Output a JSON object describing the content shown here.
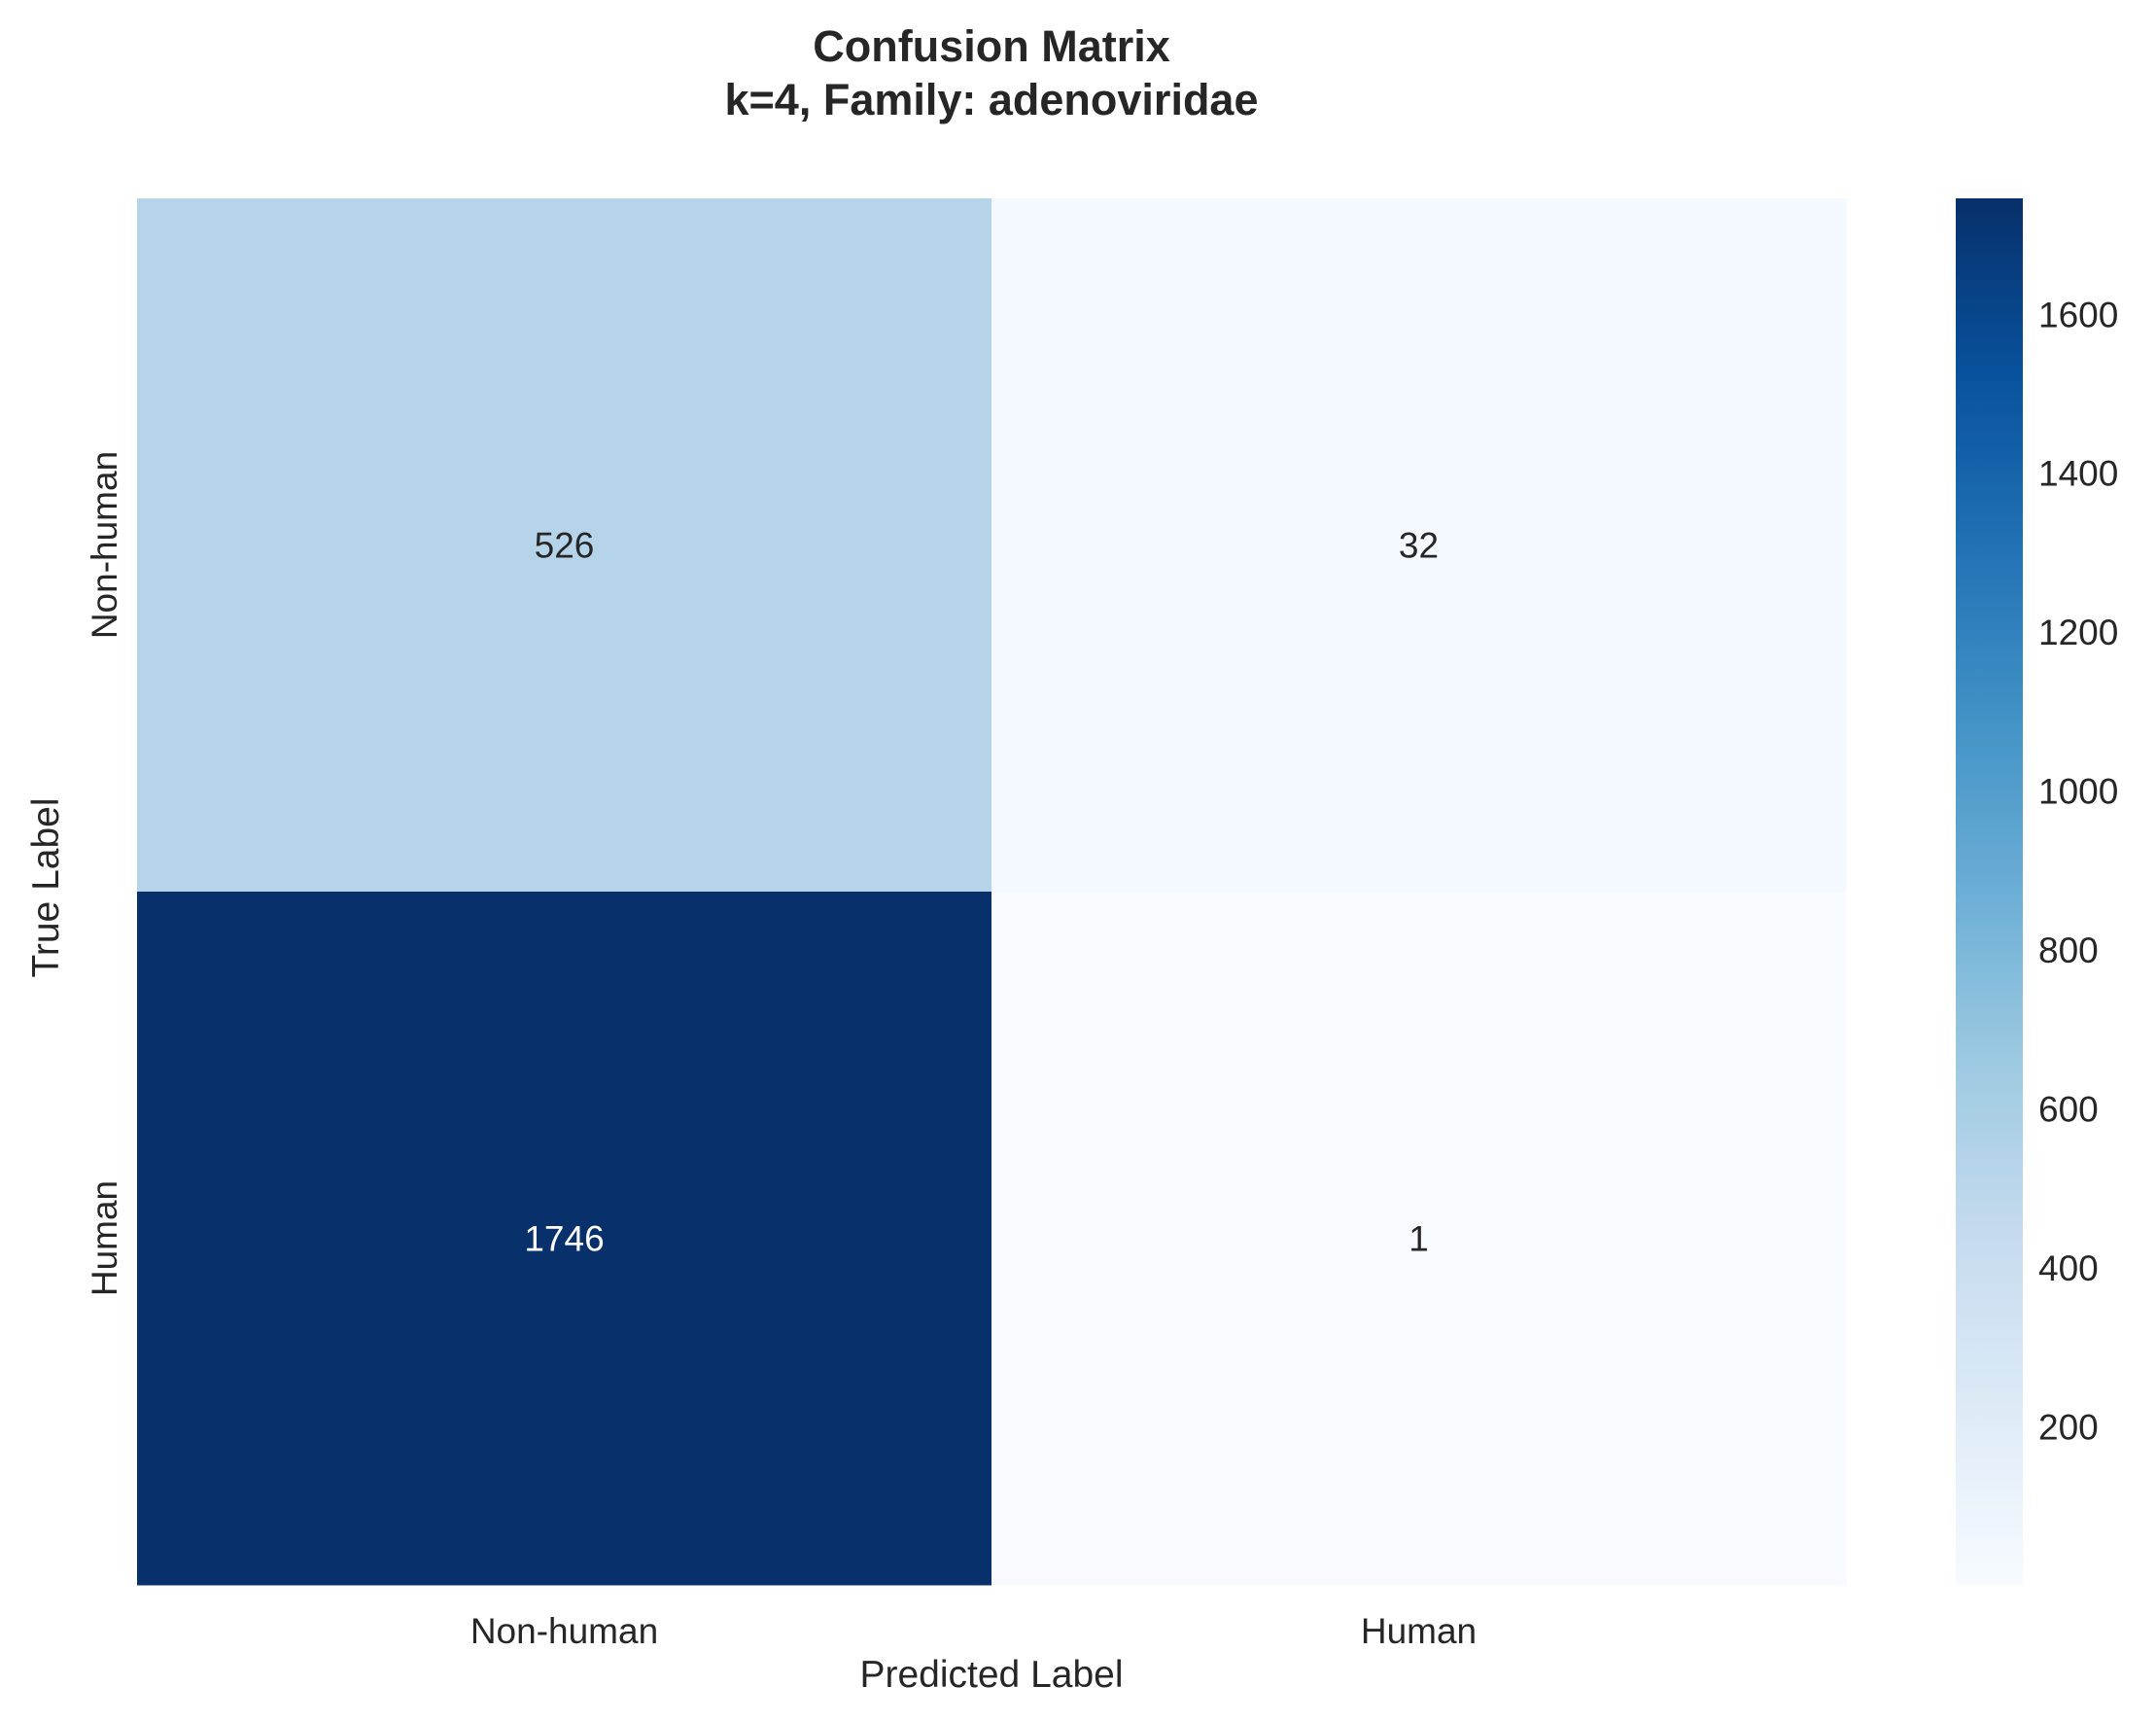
{
  "chart_data": {
    "type": "heatmap",
    "title": "Confusion Matrix",
    "subtitle": "k=4, Family: adenoviridae",
    "xlabel": "Predicted Label",
    "ylabel": "True Label",
    "x_categories": [
      "Non-human",
      "Human"
    ],
    "y_categories": [
      "Non-human",
      "Human"
    ],
    "values": [
      [
        526,
        32
      ],
      [
        1746,
        1
      ]
    ],
    "colormap": "Blues",
    "colorbar": {
      "range": [
        1,
        1746
      ],
      "ticks": [
        200,
        400,
        600,
        800,
        1000,
        1200,
        1400,
        1600
      ]
    },
    "colors": {
      "cell_low": "#f7fbff",
      "cell_high": "#08306b",
      "text_dark": "#262626",
      "text_light": "#ffffff"
    }
  }
}
